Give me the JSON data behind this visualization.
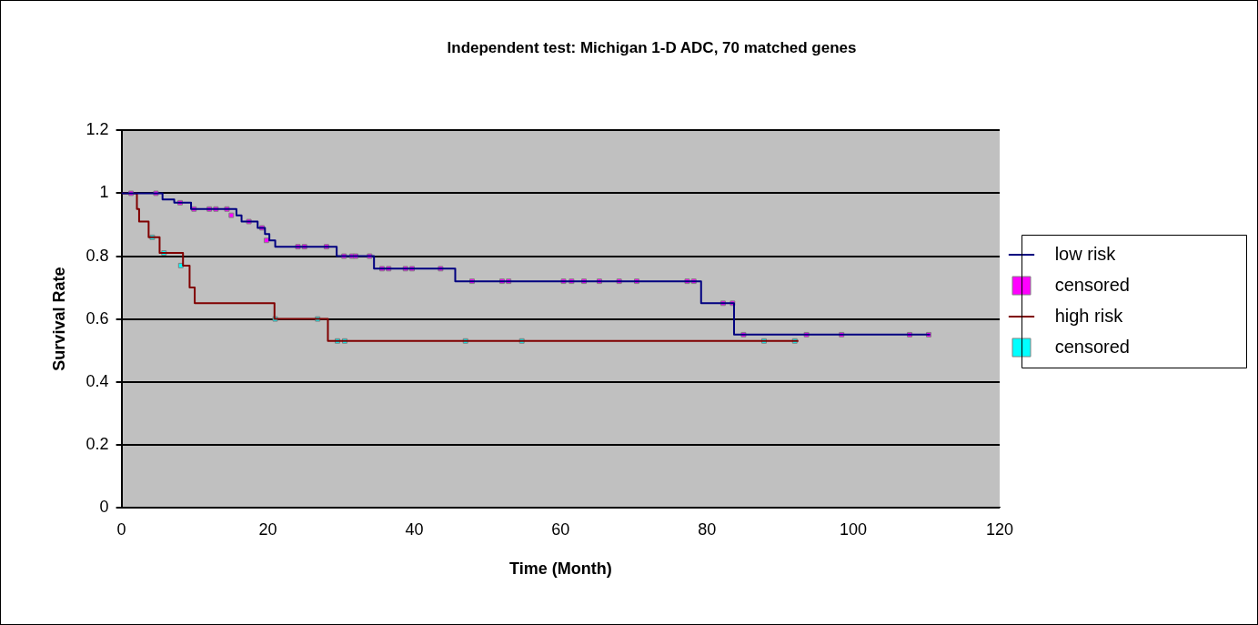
{
  "chart_data": {
    "type": "step",
    "title": "Independent test: Michigan 1-D ADC, 70 matched genes",
    "xlabel": "Time (Month)",
    "ylabel": "Survival Rate",
    "xlim": [
      0,
      120
    ],
    "xticks": [
      0,
      20,
      40,
      60,
      80,
      100,
      120
    ],
    "ylim": [
      0,
      1.2
    ],
    "yticks": [
      0,
      0.2,
      0.4,
      0.6,
      0.8,
      1,
      1.2
    ],
    "grid": "y",
    "legend": "right",
    "series": [
      {
        "name": "low risk",
        "marker": "none",
        "color": "#000080",
        "x": [
          0,
          5.6,
          7.2,
          9.5,
          15.7,
          16.4,
          18.6,
          19.6,
          20.2,
          21.0,
          29.4,
          34.5,
          45.6,
          79.2,
          83.7,
          110.5
        ],
        "values": [
          1,
          0.98,
          0.97,
          0.95,
          0.93,
          0.91,
          0.89,
          0.87,
          0.85,
          0.83,
          0.8,
          0.76,
          0.72,
          0.65,
          0.55,
          0.55
        ]
      },
      {
        "name": "censored",
        "type": "scatter",
        "marker": "square",
        "color": "#ff00ff",
        "x": [
          1.3,
          4.7,
          8.0,
          9.9,
          12.0,
          12.9,
          14.4,
          15.0,
          17.4,
          19.2,
          19.8,
          24.1,
          25.0,
          28.0,
          30.4,
          31.5,
          32.0,
          33.9,
          35.6,
          36.5,
          38.8,
          39.7,
          43.6,
          47.9,
          52.0,
          52.9,
          60.4,
          61.5,
          63.2,
          65.3,
          68.0,
          70.4,
          77.3,
          78.2,
          82.2,
          83.5,
          85.0,
          93.6,
          98.4,
          107.7,
          110.3
        ],
        "values": [
          1,
          1,
          0.97,
          0.95,
          0.95,
          0.95,
          0.95,
          0.93,
          0.91,
          0.89,
          0.85,
          0.83,
          0.83,
          0.83,
          0.8,
          0.8,
          0.8,
          0.8,
          0.76,
          0.76,
          0.76,
          0.76,
          0.76,
          0.72,
          0.72,
          0.72,
          0.72,
          0.72,
          0.72,
          0.72,
          0.72,
          0.72,
          0.72,
          0.72,
          0.65,
          0.65,
          0.55,
          0.55,
          0.55,
          0.55,
          0.55
        ]
      },
      {
        "name": "high risk",
        "marker": "none",
        "color": "#800000",
        "x": [
          0,
          2.1,
          2.4,
          3.7,
          5.2,
          8.4,
          9.3,
          10.0,
          20.9,
          28.2,
          92.5
        ],
        "values": [
          1,
          0.95,
          0.91,
          0.86,
          0.81,
          0.77,
          0.7,
          0.65,
          0.6,
          0.53,
          0.53
        ]
      },
      {
        "name": "censored",
        "type": "scatter",
        "marker": "square",
        "color": "#00ffff",
        "x": [
          4.2,
          5.8,
          8.1,
          21.0,
          26.8,
          29.5,
          30.5,
          47.0,
          54.7,
          87.8,
          92.0
        ],
        "values": [
          0.86,
          0.81,
          0.77,
          0.6,
          0.6,
          0.53,
          0.53,
          0.53,
          0.53,
          0.53,
          0.53
        ]
      }
    ]
  }
}
